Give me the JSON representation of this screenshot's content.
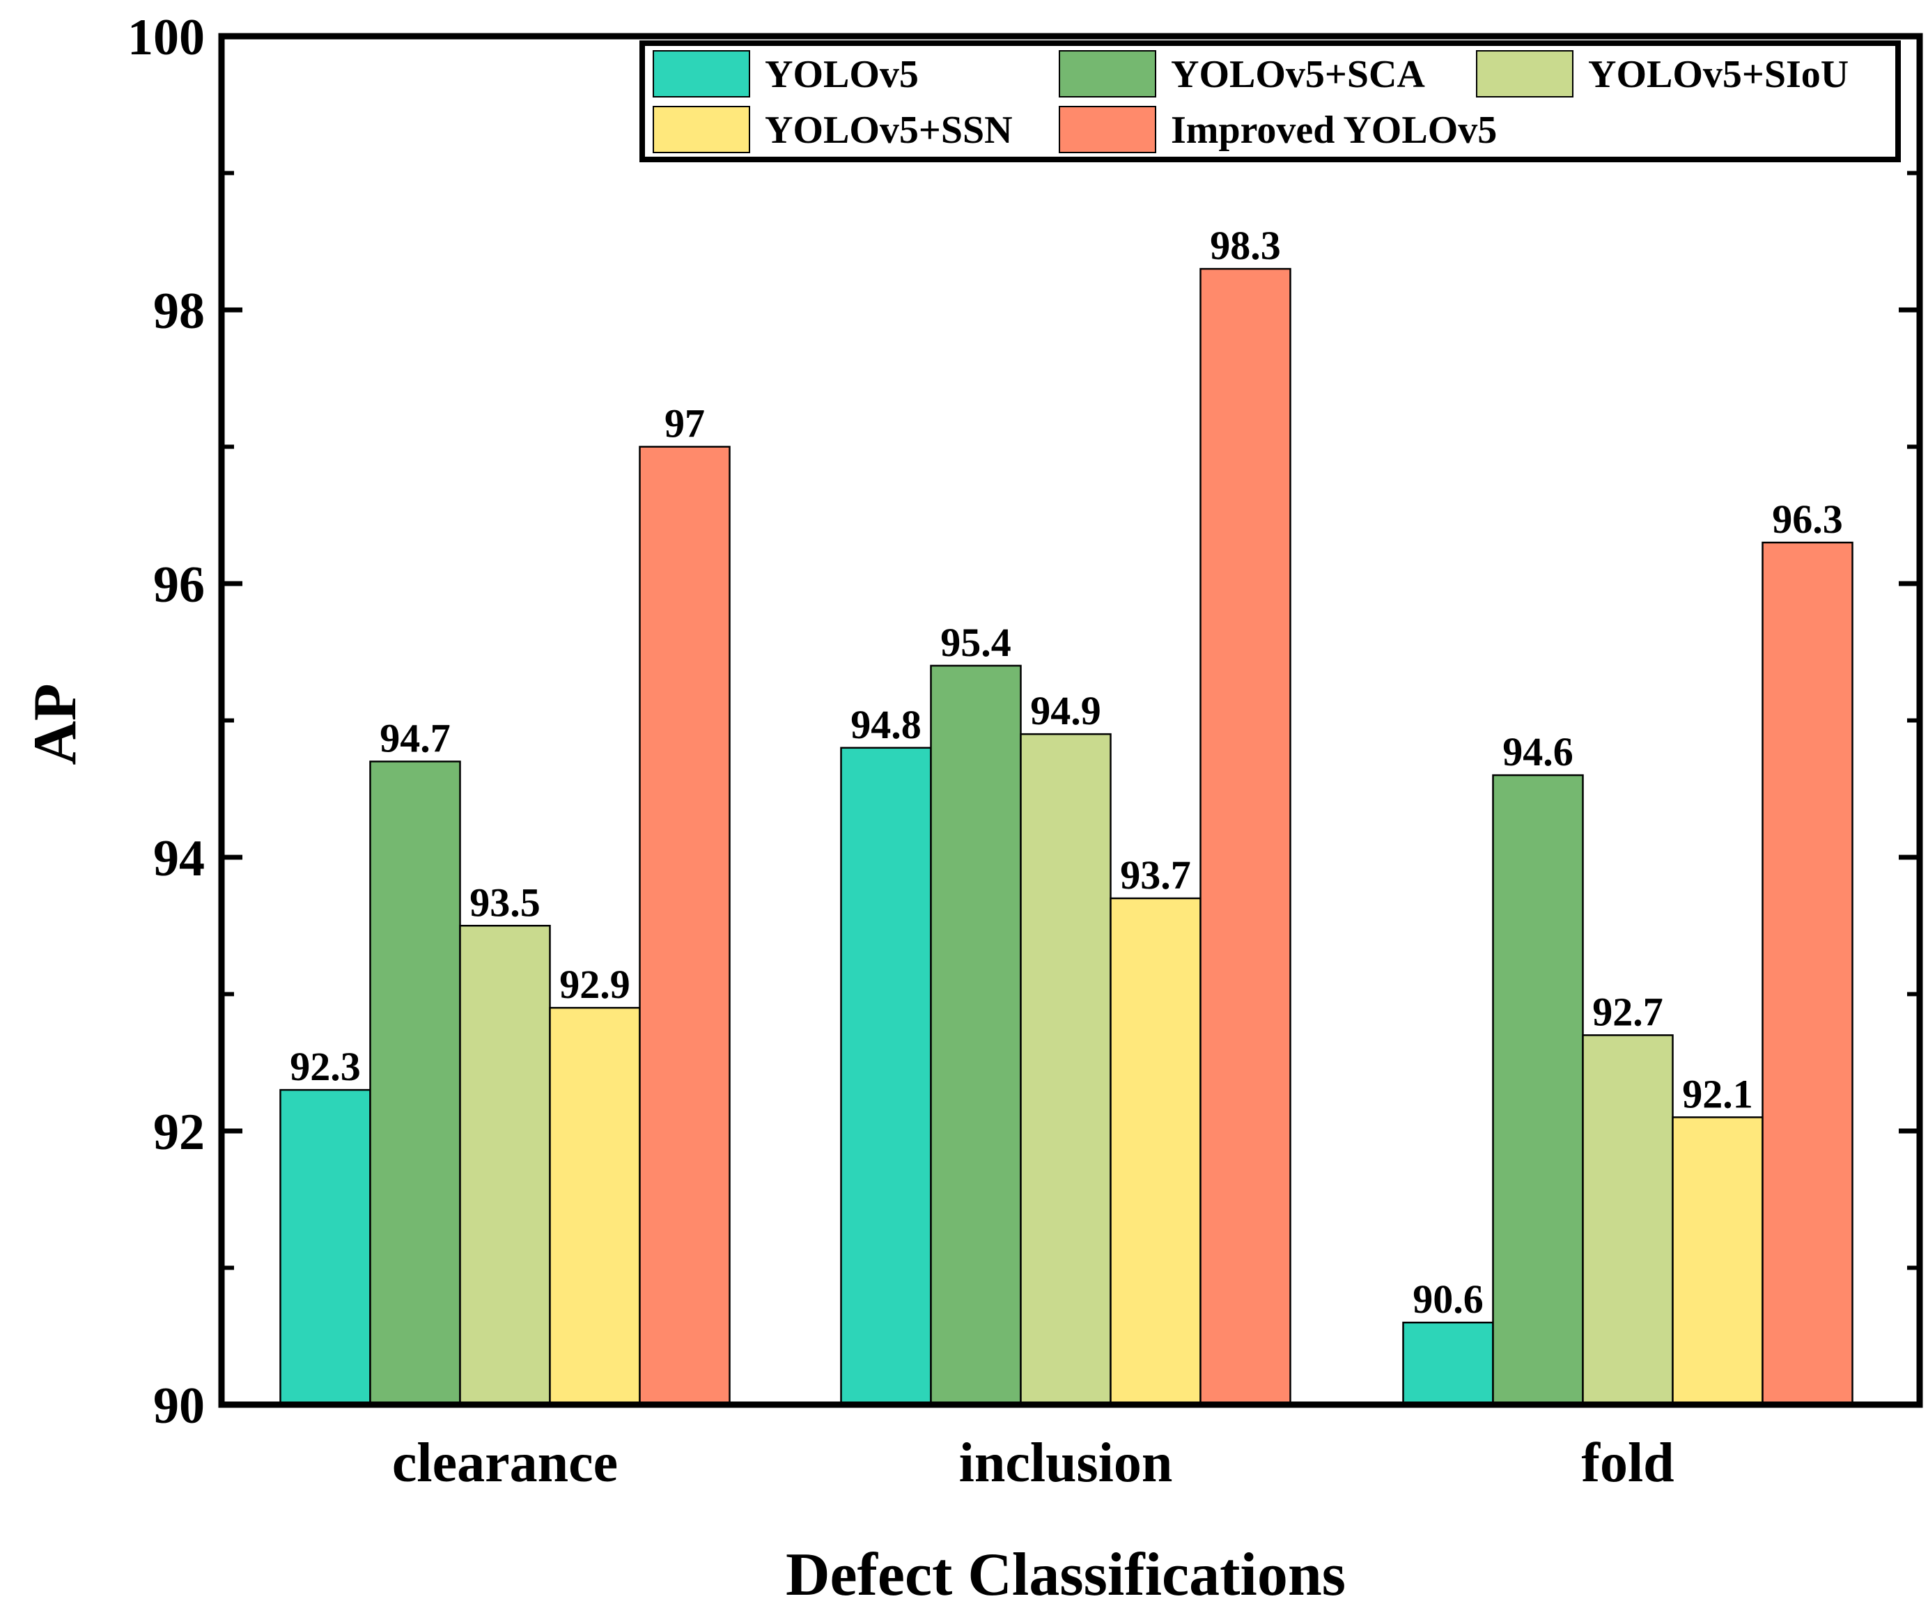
{
  "chart_data": {
    "type": "bar",
    "title": "",
    "xlabel": "Defect Classifications",
    "ylabel": "AP",
    "ylim": [
      90,
      100
    ],
    "yticks": [
      90,
      92,
      94,
      96,
      98,
      100
    ],
    "categories": [
      "clearance",
      "inclusion",
      "fold"
    ],
    "legend_position": "top-right",
    "series": [
      {
        "name": "YOLOv5",
        "color": "#2DD5B8",
        "values": [
          92.3,
          94.8,
          90.6
        ],
        "labels": [
          "92.3",
          "94.8",
          "90.6"
        ]
      },
      {
        "name": "YOLOv5+SCA",
        "color": "#75B870",
        "values": [
          94.7,
          95.4,
          94.6
        ],
        "labels": [
          "94.7",
          "95.4",
          "94.6"
        ]
      },
      {
        "name": "YOLOv5+SIoU",
        "color": "#C9DA8E",
        "values": [
          93.5,
          94.9,
          92.7
        ],
        "labels": [
          "93.5",
          "94.9",
          "92.7"
        ]
      },
      {
        "name": "YOLOv5+SSN",
        "color": "#FFE87C",
        "values": [
          92.9,
          93.7,
          92.1
        ],
        "labels": [
          "92.9",
          "93.7",
          "92.1"
        ]
      },
      {
        "name": "Improved YOLOv5",
        "color": "#FF8A6B",
        "values": [
          97,
          98.3,
          96.3
        ],
        "labels": [
          "97",
          "98.3",
          "96.3"
        ]
      }
    ]
  }
}
